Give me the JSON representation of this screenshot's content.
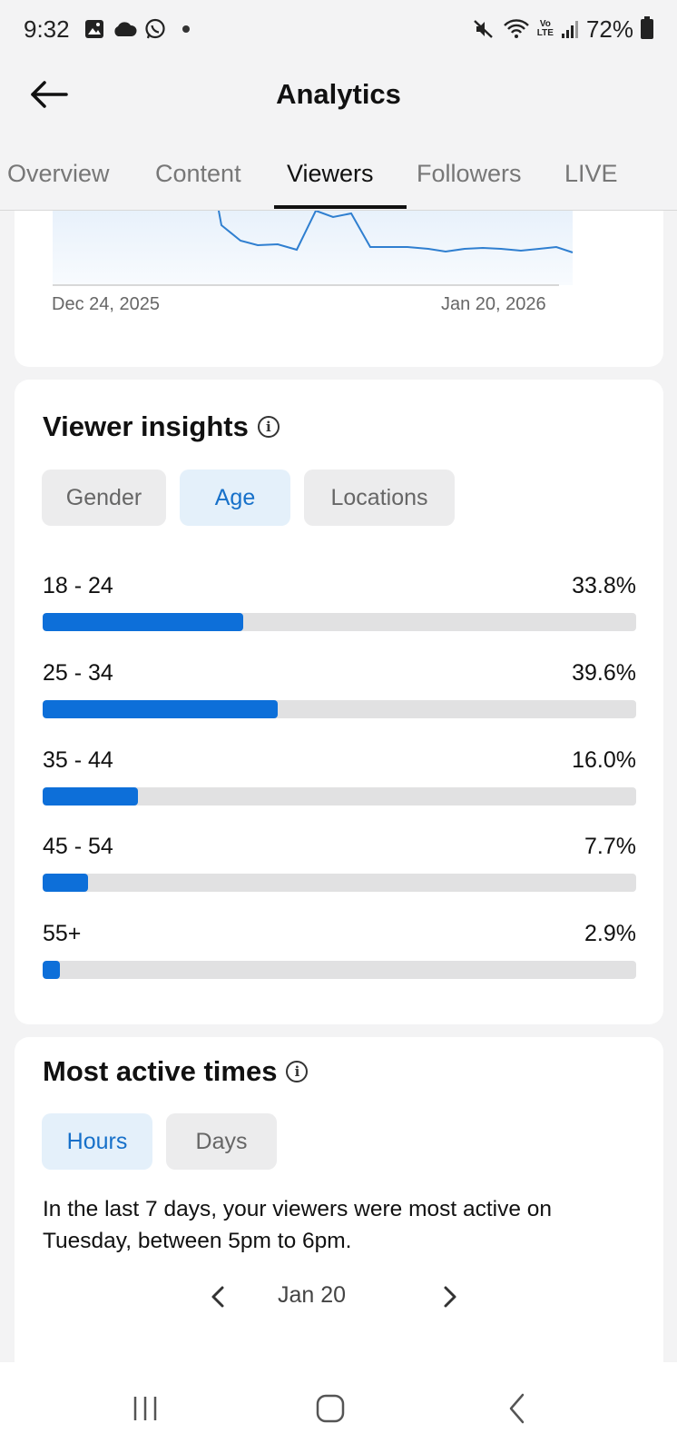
{
  "status_bar": {
    "time": "9:32",
    "battery": "72%",
    "icons_left": [
      "gallery-icon",
      "cloud-icon",
      "whatsapp-icon"
    ],
    "icons_right": [
      "mute-icon",
      "wifi-icon",
      "volte-icon",
      "signal-icon",
      "battery-icon"
    ],
    "volte_top": "Vo",
    "volte_bottom": "LTE"
  },
  "header": {
    "title": "Analytics",
    "back_icon": "back-arrow-icon"
  },
  "tabs": [
    {
      "label": "Overview",
      "active": false
    },
    {
      "label": "Content",
      "active": false
    },
    {
      "label": "Viewers",
      "active": true
    },
    {
      "label": "Followers",
      "active": false
    },
    {
      "label": "LIVE",
      "active": false
    }
  ],
  "trend_chart": {
    "x_start": "Dec 24, 2025",
    "x_end": "Jan 20, 2026"
  },
  "viewer_insights": {
    "title": "Viewer insights",
    "filters": [
      {
        "label": "Gender",
        "active": false
      },
      {
        "label": "Age",
        "active": true
      },
      {
        "label": "Locations",
        "active": false
      }
    ],
    "age_groups": [
      {
        "label": "18 - 24",
        "value": "33.8%",
        "percent": 33.8
      },
      {
        "label": "25 - 34",
        "value": "39.6%",
        "percent": 39.6
      },
      {
        "label": "35 - 44",
        "value": "16.0%",
        "percent": 16.0
      },
      {
        "label": "45 - 54",
        "value": "7.7%",
        "percent": 7.7
      },
      {
        "label": "55+",
        "value": "2.9%",
        "percent": 2.9
      }
    ]
  },
  "most_active_times": {
    "title": "Most active times",
    "filters": [
      {
        "label": "Hours",
        "active": true
      },
      {
        "label": "Days",
        "active": false
      }
    ],
    "summary": "In the last 7 days, your viewers were most active on Tuesday, between 5pm to 6pm.",
    "date": "Jan 20"
  },
  "colors": {
    "accent": "#0d6fd9",
    "accent_text": "#1670c9",
    "accent_bg": "#e4f0fa",
    "track": "#e1e1e2",
    "chart_line": "#2f7fd0"
  }
}
